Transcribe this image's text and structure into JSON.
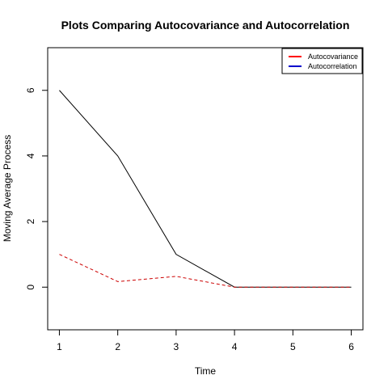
{
  "chart_data": {
    "type": "line",
    "title": "Plots Comparing Autocovariance and Autocorrelation",
    "xlabel": "Time",
    "ylabel": "Moving Average Process",
    "xlim": [
      0.8,
      6.2
    ],
    "ylim": [
      -1.3,
      7.3
    ],
    "x_ticks": [
      1,
      2,
      3,
      4,
      5,
      6
    ],
    "y_ticks": [
      0,
      2,
      4,
      6
    ],
    "x": [
      1,
      2,
      3,
      4,
      5,
      6
    ],
    "grid": false,
    "legend_position": "top-right",
    "series": [
      {
        "name": "Autocovariance",
        "values": [
          6,
          4,
          1,
          0,
          0,
          0
        ],
        "line_color": "#000000",
        "dash": "solid"
      },
      {
        "name": "Autocorrelation",
        "values": [
          1,
          0.17,
          0.33,
          0,
          0,
          0
        ],
        "line_color": "#cc0000",
        "dash": "dashed"
      }
    ],
    "legend": [
      {
        "label": "Autocovariance",
        "color": "#ff0000"
      },
      {
        "label": "Autocorrelation",
        "color": "#0000cc"
      }
    ]
  }
}
